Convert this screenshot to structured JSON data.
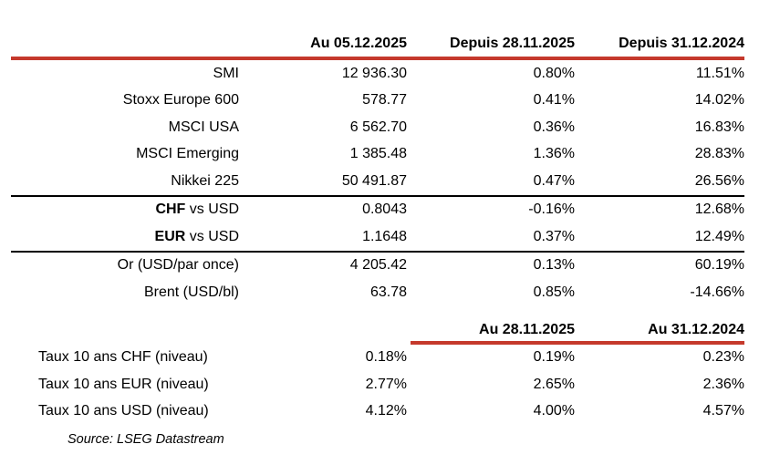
{
  "colors": {
    "accent_red": "#c5392c",
    "rule_black": "#000000"
  },
  "section_markets": {
    "headers": {
      "col1": "Au 05.12.2025",
      "col2": "Depuis 28.11.2025",
      "col3": "Depuis 31.12.2024"
    },
    "indices": {
      "rows": [
        {
          "label": "SMI",
          "level": "12 936.30",
          "since_week": "0.80%",
          "since_ytd": "11.51%"
        },
        {
          "label": "Stoxx Europe 600",
          "level": "578.77",
          "since_week": "0.41%",
          "since_ytd": "14.02%"
        },
        {
          "label": "MSCI USA",
          "level": "6 562.70",
          "since_week": "0.36%",
          "since_ytd": "16.83%"
        },
        {
          "label": "MSCI Emerging",
          "level": "1 385.48",
          "since_week": "1.36%",
          "since_ytd": "28.83%"
        },
        {
          "label": "Nikkei 225",
          "level": "50 491.87",
          "since_week": "0.47%",
          "since_ytd": "26.56%"
        }
      ]
    },
    "currencies": {
      "rows": [
        {
          "label_bold": "CHF",
          "label_rest": " vs USD",
          "level": "0.8043",
          "since_week": "-0.16%",
          "since_ytd": "12.68%"
        },
        {
          "label_bold": "EUR",
          "label_rest": " vs USD",
          "level": "1.1648",
          "since_week": "0.37%",
          "since_ytd": "12.49%"
        }
      ]
    },
    "commodities": {
      "rows": [
        {
          "label": "Or (USD/par once)",
          "level": "4 205.42",
          "since_week": "0.13%",
          "since_ytd": "60.19%"
        },
        {
          "label": "Brent (USD/bl)",
          "level": "63.78",
          "since_week": "0.85%",
          "since_ytd": "-14.66%"
        }
      ]
    }
  },
  "section_rates": {
    "headers": {
      "col2": "Au 28.11.2025",
      "col3": "Au 31.12.2024"
    },
    "rows": [
      {
        "label": "Taux 10 ans CHF (niveau)",
        "current": "0.18%",
        "prev_week": "0.19%",
        "prev_year": "0.23%"
      },
      {
        "label": "Taux 10 ans EUR (niveau)",
        "current": "2.77%",
        "prev_week": "2.65%",
        "prev_year": "2.36%"
      },
      {
        "label": "Taux 10 ans USD (niveau)",
        "current": "4.12%",
        "prev_week": "4.00%",
        "prev_year": "4.57%"
      }
    ]
  },
  "source": "Source: LSEG Datastream",
  "chart_data": {
    "type": "table",
    "title": "",
    "columns": [
      "",
      "Au 05.12.2025",
      "Depuis 28.11.2025",
      "Depuis 31.12.2024"
    ],
    "rows": [
      [
        "SMI",
        "12 936.30",
        "0.80%",
        "11.51%"
      ],
      [
        "Stoxx Europe 600",
        "578.77",
        "0.41%",
        "14.02%"
      ],
      [
        "MSCI USA",
        "6 562.70",
        "0.36%",
        "16.83%"
      ],
      [
        "MSCI Emerging",
        "1 385.48",
        "1.36%",
        "28.83%"
      ],
      [
        "Nikkei 225",
        "50 491.87",
        "0.47%",
        "26.56%"
      ],
      [
        "CHF vs USD",
        "0.8043",
        "-0.16%",
        "12.68%"
      ],
      [
        "EUR vs USD",
        "1.1648",
        "0.37%",
        "12.49%"
      ],
      [
        "Or (USD/par once)",
        "4 205.42",
        "0.13%",
        "60.19%"
      ],
      [
        "Brent (USD/bl)",
        "63.78",
        "0.85%",
        "-14.66%"
      ]
    ],
    "secondary_columns": [
      "",
      "",
      "Au 28.11.2025",
      "Au 31.12.2024"
    ],
    "secondary_rows": [
      [
        "Taux 10 ans CHF (niveau)",
        "0.18%",
        "0.19%",
        "0.23%"
      ],
      [
        "Taux 10 ans EUR (niveau)",
        "2.77%",
        "2.65%",
        "2.36%"
      ],
      [
        "Taux 10 ans USD (niveau)",
        "4.12%",
        "4.00%",
        "4.57%"
      ]
    ],
    "footnote": "Source: LSEG Datastream"
  }
}
